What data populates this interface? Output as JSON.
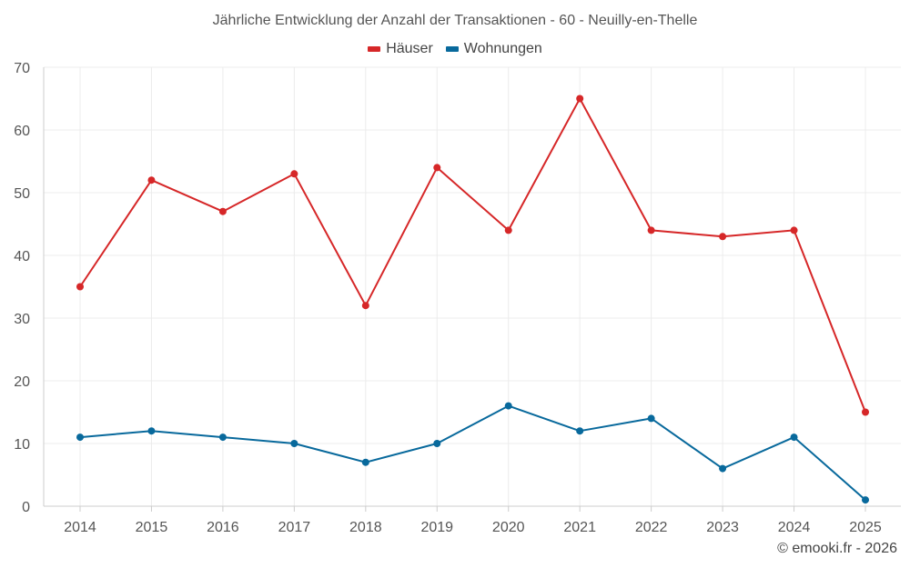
{
  "chart_data": {
    "type": "line",
    "title": "Jährliche Entwicklung der Anzahl der Transaktionen - 60 - Neuilly-en-Thelle",
    "categories": [
      "2014",
      "2015",
      "2016",
      "2017",
      "2018",
      "2019",
      "2020",
      "2021",
      "2022",
      "2023",
      "2024",
      "2025"
    ],
    "series": [
      {
        "name": "Häuser",
        "color": "#d62728",
        "values": [
          35,
          52,
          47,
          53,
          32,
          54,
          44,
          65,
          44,
          43,
          44,
          15
        ]
      },
      {
        "name": "Wohnungen",
        "color": "#08699c",
        "values": [
          11,
          12,
          11,
          10,
          7,
          10,
          16,
          12,
          14,
          6,
          11,
          1
        ]
      }
    ],
    "ylim": [
      0,
      70
    ],
    "yticks": [
      0,
      10,
      20,
      30,
      40,
      50,
      60,
      70
    ],
    "xlabel": "",
    "ylabel": "",
    "grid": true,
    "legend_position": "top-center"
  },
  "footer": {
    "copyright": "© emooki.fr - 2026"
  }
}
